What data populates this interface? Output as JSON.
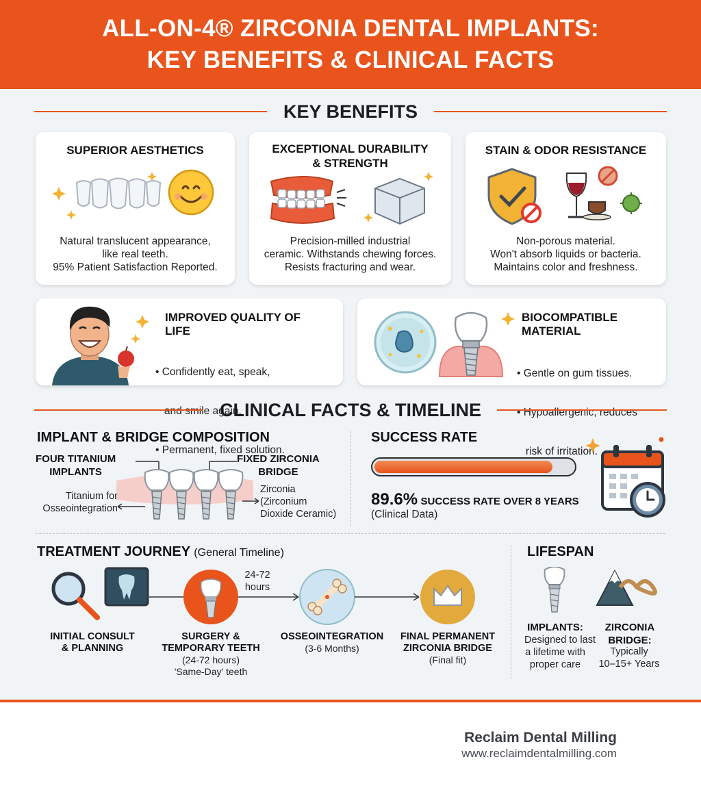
{
  "header": {
    "line1": "ALL-ON-4® ZIRCONIA DENTAL IMPLANTS:",
    "line2": "KEY BENEFITS & CLINICAL FACTS"
  },
  "key_benefits": {
    "title": "KEY BENEFITS",
    "cards": [
      {
        "title": "SUPERIOR AESTHETICS",
        "desc": [
          "Natural translucent appearance,",
          "like real teeth.",
          "95% Patient Satisfaction Reported."
        ]
      },
      {
        "title": [
          "EXCEPTIONAL DURABILITY",
          "& STRENGTH"
        ],
        "desc": [
          "Precision-milled industrial",
          "ceramic. Withstands chewing forces.",
          "Resists fracturing and wear."
        ]
      },
      {
        "title": "STAIN & ODOR RESISTANCE",
        "desc": [
          "Non-porous material.",
          "Won't absorb liquids or bacteria.",
          "Maintains color and freshness."
        ]
      }
    ],
    "wide_cards": [
      {
        "title": [
          "IMPROVED QUALITY OF",
          "LIFE"
        ],
        "bullets": [
          "• Confidently eat, speak,",
          "   and smile again.",
          "• Permanent, fixed solution."
        ]
      },
      {
        "title": [
          "BIOCOMPATIBLE",
          "MATERIAL"
        ],
        "bullets": [
          "• Gentle on gum tissues.",
          "• Hypoallergenic, reduces",
          "   risk of irritation."
        ]
      }
    ]
  },
  "clinical": {
    "title": "CLINICAL FACTS & TIMELINE",
    "composition": {
      "title": "IMPLANT & BRIDGE COMPOSITION",
      "left_label": [
        "FOUR TITANIUM",
        "IMPLANTS"
      ],
      "right_label": [
        "FIXED ZIRCONIA",
        "BRIDGE"
      ],
      "left_note": [
        "Titanium for",
        "Osseointegration"
      ],
      "right_note": [
        "Zirconia",
        "(Zirconium",
        "Dioxide Ceramic)"
      ]
    },
    "success": {
      "title": "SUCCESS RATE",
      "rate": 89.6,
      "value": "89.6%",
      "label": "SUCCESS RATE OVER 8 YEARS",
      "source": "(Clinical Data)"
    },
    "journey": {
      "title": "TREATMENT JOURNEY",
      "subtitle": "(General Timeline)",
      "arrow_note": [
        "24-72",
        "hours"
      ],
      "steps": [
        {
          "title": [
            "INITIAL CONSULT",
            "& PLANNING"
          ],
          "sub": []
        },
        {
          "title": [
            "SURGERY &",
            "TEMPORARY TEETH"
          ],
          "sub": [
            "(24-72 hours)",
            "'Same-Day' teeth"
          ]
        },
        {
          "title": [
            "OSSEOINTEGRATION"
          ],
          "sub": [
            "(3-6 Months)"
          ]
        },
        {
          "title": [
            "FINAL PERMANENT",
            "ZIRCONIA BRIDGE"
          ],
          "sub": [
            "(Final fit)"
          ]
        }
      ]
    },
    "lifespan": {
      "title": "LIFESPAN",
      "implants_title": "IMPLANTS:",
      "implants_desc": [
        "Designed to last",
        "a lifetime with",
        "proper care"
      ],
      "bridge_title": [
        "ZIRCONIA",
        "BRIDGE:"
      ],
      "bridge_desc": [
        "Typically",
        "10–15+ Years"
      ]
    }
  },
  "footer": {
    "brand": "Reclaim Dental Milling",
    "url": "www.reclaimdentalmilling.com"
  },
  "colors": {
    "accent": "#e8541c",
    "background": "#f1f4f6"
  }
}
